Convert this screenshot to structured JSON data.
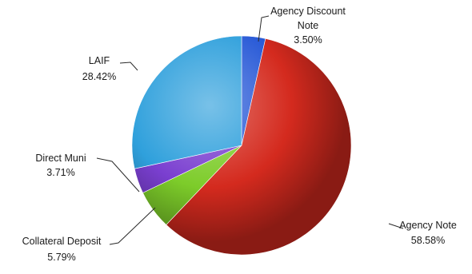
{
  "chart_data": {
    "type": "pie",
    "title": "",
    "slices": [
      {
        "label_lines": [
          "Agency Discount",
          "Note"
        ],
        "value_label": "3.50%",
        "value": 3.5,
        "color": "#2a5bd7"
      },
      {
        "label_lines": [
          "Agency Note"
        ],
        "value_label": "58.58%",
        "value": 58.58,
        "color": "#d42a1e"
      },
      {
        "label_lines": [
          "Collateral Deposit"
        ],
        "value_label": "5.79%",
        "value": 5.79,
        "color": "#7dcc2a"
      },
      {
        "label_lines": [
          "Direct Muni"
        ],
        "value_label": "3.71%",
        "value": 3.71,
        "color": "#7a3fd0"
      },
      {
        "label_lines": [
          "LAIF"
        ],
        "value_label": "28.42%",
        "value": 28.42,
        "color": "#2fa0dc"
      }
    ],
    "start_angle": "12 o'clock",
    "direction": "clockwise",
    "legend": "none"
  }
}
